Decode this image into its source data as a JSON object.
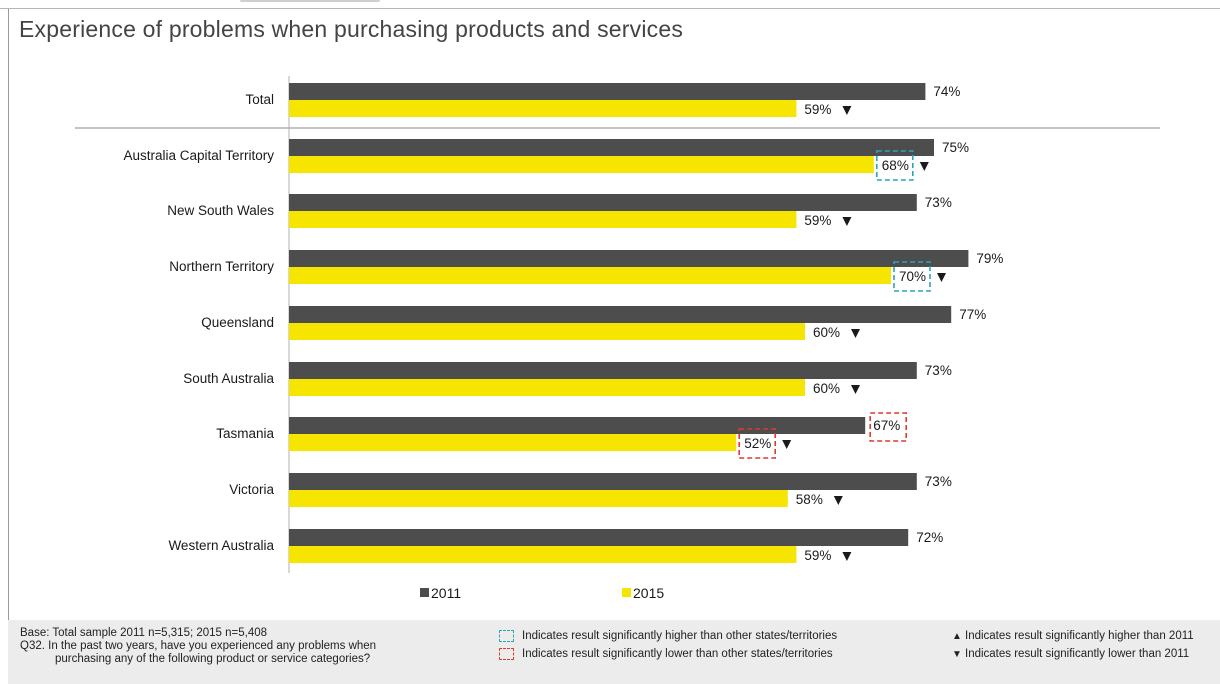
{
  "title": "Experience of problems when purchasing products and services",
  "colors": {
    "s2011": "#4d4d4d",
    "s2015": "#f5e500",
    "higher_box": "#2aa5b8",
    "lower_box": "#e03a2e"
  },
  "chart_data": {
    "type": "bar",
    "orientation": "horizontal",
    "title": "Experience of problems when purchasing products and services",
    "unit": "%",
    "categories": [
      "Total",
      "Australia Capital Territory",
      "New South Wales",
      "Northern Territory",
      "Queensland",
      "South Australia",
      "Tasmania",
      "Victoria",
      "Western Australia"
    ],
    "series": [
      {
        "name": "2011",
        "values": [
          74,
          75,
          73,
          79,
          77,
          73,
          67,
          73,
          72
        ]
      },
      {
        "name": "2015",
        "values": [
          59,
          68,
          59,
          70,
          60,
          60,
          52,
          58,
          59
        ]
      }
    ],
    "labels_2011": [
      "74%",
      "75%",
      "73%",
      "79%",
      "77%",
      "73%",
      "67%",
      "73%",
      "72%"
    ],
    "labels_2015": [
      "59%",
      "68%",
      "59%",
      "70%",
      "60%",
      "60%",
      "52%",
      "58%",
      "59%"
    ],
    "down_arrow_2015": [
      true,
      true,
      true,
      true,
      true,
      true,
      true,
      true,
      true
    ],
    "boxed_higher_2015": [
      false,
      true,
      false,
      true,
      false,
      false,
      false,
      false,
      false
    ],
    "boxed_lower_2015": [
      false,
      false,
      false,
      false,
      false,
      false,
      true,
      false,
      false
    ],
    "boxed_lower_2011": [
      false,
      false,
      false,
      false,
      false,
      false,
      true,
      false,
      false
    ],
    "legend_position": "bottom",
    "grid": false
  },
  "legend": {
    "item_2011": "2011",
    "item_2015": "2015"
  },
  "footer": {
    "base": "Base: Total sample 2011 n=5,315; 2015 n=5,408",
    "q_line1": "Q32. In the past two years, have you experienced any problems when",
    "q_line2": "purchasing any of the following product or service categories?",
    "key_higher_states": "Indicates result significantly higher than other states/territories",
    "key_lower_states": "Indicates result significantly lower than other states/territories",
    "key_higher_2011": "Indicates result significantly higher than 2011",
    "key_lower_2011": "Indicates result significantly lower than 2011",
    "up_symbol": "▲",
    "down_symbol": "▼"
  }
}
